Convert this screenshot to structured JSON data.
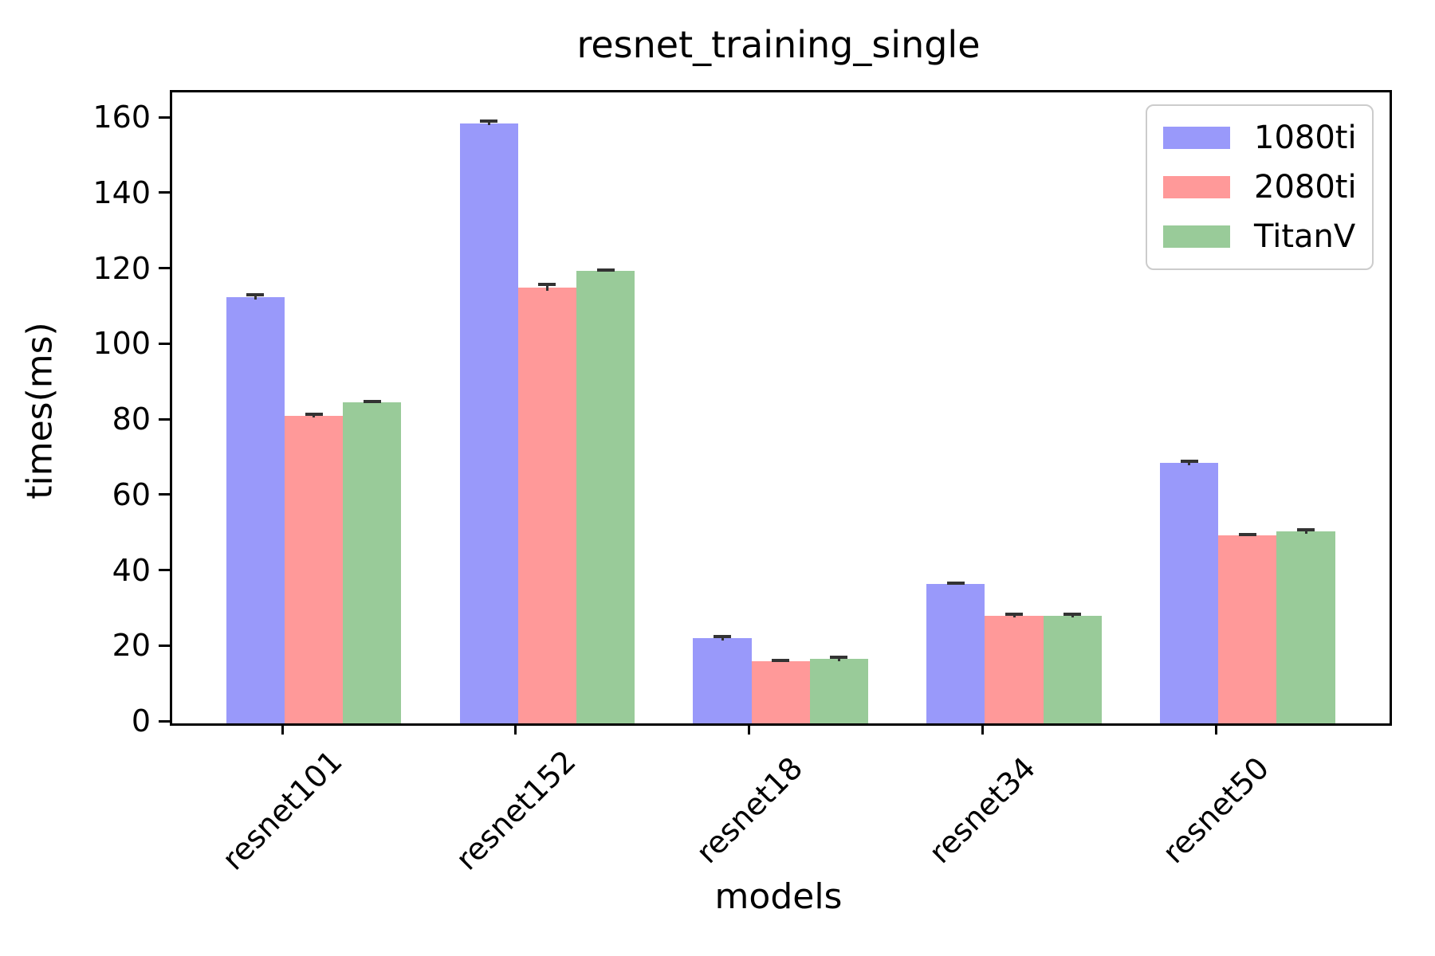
{
  "chart_data": {
    "type": "bar",
    "title": "resnet_training_single",
    "xlabel": "models",
    "ylabel": "times(ms)",
    "categories": [
      "resnet101",
      "resnet152",
      "resnet18",
      "resnet34",
      "resnet50"
    ],
    "series": [
      {
        "name": "1080ti",
        "color": "#9999fa",
        "values": [
          113,
          159,
          22.5,
          37,
          69
        ],
        "errors": [
          0.6,
          0.5,
          0.6,
          0.2,
          0.5
        ]
      },
      {
        "name": "2080ti",
        "color": "#ff9999",
        "values": [
          81.5,
          115.5,
          16.5,
          28.5,
          49.8
        ],
        "errors": [
          0.5,
          0.9,
          0.2,
          0.5,
          0.2
        ]
      },
      {
        "name": "TitanV",
        "color": "#99cb99",
        "values": [
          85,
          120,
          17,
          28.5,
          50.8
        ],
        "errors": [
          0.2,
          0.2,
          0.5,
          0.4,
          0.5
        ]
      }
    ],
    "ylim": [
      0,
      167
    ],
    "yticks": [
      0,
      20,
      40,
      60,
      80,
      100,
      120,
      140,
      160
    ],
    "legend_position": "upper right",
    "grid": false,
    "error_color": "#333333"
  }
}
